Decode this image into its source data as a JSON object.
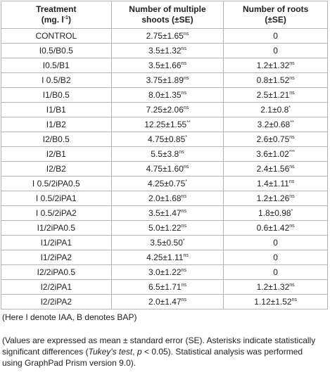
{
  "header": [
    {
      "line1": "Treatment",
      "line2": "(mg. l",
      "sup": "-1",
      "after": ")"
    },
    {
      "line1": "Number of multiple",
      "line2": "shoots (±SE)"
    },
    {
      "line1": "Number of roots",
      "line2": "(±SE)"
    }
  ],
  "rows": [
    [
      "CONTROL",
      {
        "text": "2.75±1.65",
        "sup": "ns"
      },
      "0"
    ],
    [
      "I0.5/B0.5",
      {
        "text": "3.5±1.32",
        "sup": "ns"
      },
      "0"
    ],
    [
      "I0.5/B1",
      {
        "text": "3.5±1.66",
        "sup": "ns"
      },
      {
        "text": "1.2±1.32",
        "sup": "ns"
      }
    ],
    [
      "I 0.5/B2",
      {
        "text": "3.75±1.89",
        "sup": "ns"
      },
      {
        "text": "0.8±1.52",
        "sup": "ns"
      }
    ],
    [
      "I1/B0.5",
      {
        "text": "8.0±1.35",
        "sup": "ns"
      },
      {
        "text": "2.5±1.21",
        "sup": "ns"
      }
    ],
    [
      "I1/B1",
      {
        "text": "7.25±2.06",
        "sup": "ns"
      },
      {
        "text": "2.1±0.8",
        "sup": "*"
      }
    ],
    [
      "I1/B2",
      {
        "text": "12.25±1.55",
        "sup": "**"
      },
      {
        "text": "3.2±0.68",
        "sup": "**"
      }
    ],
    [
      "I2/B0.5",
      {
        "text": "4.75±0.85",
        "sup": "*"
      },
      {
        "text": "2.6±0.75",
        "sup": "ns"
      }
    ],
    [
      "I2/B1",
      {
        "text": "5.5±3.8",
        "sup": "ns"
      },
      {
        "text": "3.6±1.02",
        "sup": "***"
      }
    ],
    [
      "I2/B2",
      {
        "text": "4.75±1.60",
        "sup": "ns"
      },
      {
        "text": "2.4±1.56",
        "sup": "ns"
      }
    ],
    [
      "I 0.5/2iPA0.5",
      {
        "text": "4.25±0.75",
        "sup": "*"
      },
      {
        "text": "1.4±1.11",
        "sup": "ns"
      }
    ],
    [
      "I 0.5/2iPA1",
      {
        "text": "2.0±1.68",
        "sup": "ns"
      },
      {
        "text": "1.2±1.26",
        "sup": "ns"
      }
    ],
    [
      "I 0.5/2iPA2",
      {
        "text": "3.5±1.47",
        "sup": "ns"
      },
      {
        "text": "1.8±0.98",
        "sup": "*"
      }
    ],
    [
      "I1/2iPA0.5",
      {
        "text": "5.0±1.22",
        "sup": "ns"
      },
      {
        "text": "0.6±1.42",
        "sup": "ns"
      }
    ],
    [
      "I1/2iPA1",
      {
        "text": "3.5±0.50",
        "sup": "*"
      },
      "0"
    ],
    [
      "I1/2iPA2",
      {
        "text": "4.25±1.11",
        "sup": "ns"
      },
      "0"
    ],
    [
      "I2/2iPA0.5",
      {
        "text": "3.0±1.22",
        "sup": "ns"
      },
      "0"
    ],
    [
      "I2/2iPA1",
      {
        "text": "6.5±1.71",
        "sup": "ns"
      },
      {
        "text": "1.2±1.32",
        "sup": "ns"
      }
    ],
    [
      "I2/2iPA2",
      {
        "text": "2.0±1.47",
        "sup": "ns"
      },
      {
        "text": "1.12±1.52",
        "sup": "ns"
      }
    ]
  ],
  "notes": {
    "abbrev": "(Here I denote IAA, B denotes BAP)",
    "stats": [
      {
        "text": "(Values are expressed as mean ± standard error (SE). Asterisks indicate statistically significant differences ("
      },
      {
        "text": "Tukey's test",
        "italic": true
      },
      {
        "text": ", "
      },
      {
        "text": "p",
        "italic": true
      },
      {
        "text": " < 0.05). Statistical analysis was performed using GraphPad Prism version 9.0)."
      }
    ]
  }
}
